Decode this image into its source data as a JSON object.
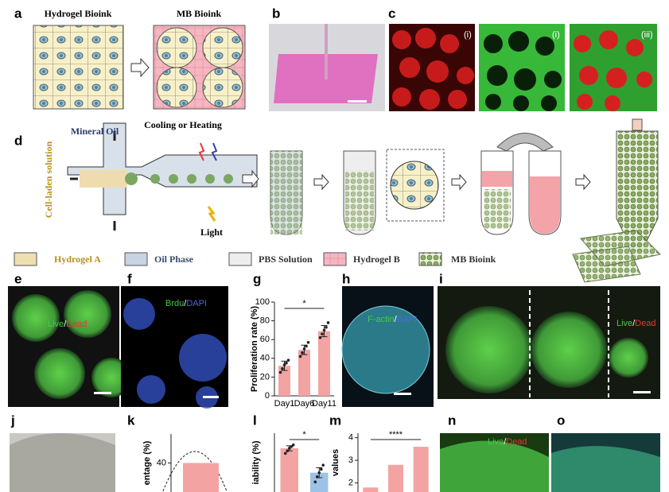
{
  "letters": [
    "a",
    "b",
    "c",
    "d",
    "e",
    "f",
    "g",
    "h",
    "i",
    "j",
    "k",
    "l",
    "m",
    "n",
    "o"
  ],
  "a": {
    "left": "Hydrogel Bioink",
    "right": "MB Bioink"
  },
  "c": {
    "tags": [
      "(i)",
      "(i)",
      "(iii)"
    ]
  },
  "d": {
    "oil": "Mineral Oil",
    "temp": "Cooling or Heating",
    "cells": "Cell-laden solution",
    "light": "Light"
  },
  "legend": [
    "Hydrogel A",
    "Oil Phase",
    "PBS Solution",
    "Hydrogel B",
    "MB Bioink"
  ],
  "e": {
    "live": "Live",
    "slash": "/",
    "dead": "Dead"
  },
  "f": {
    "a": "Brdu",
    "slash": "/",
    "b": "DAPI"
  },
  "h": {
    "a": "F-actin",
    "slash": "/",
    "b": "DAPI"
  },
  "i": {
    "live": "Live",
    "slash": "/",
    "dead": "Dead"
  },
  "n": {
    "live": "Live",
    "slash": "/",
    "dead": "Dead"
  },
  "chart_data": [
    {
      "type": "bar",
      "ylabel": "Proliferation rate (%)",
      "categories": [
        "Day1",
        "Day6",
        "Day11"
      ],
      "values": [
        32,
        49,
        69
      ],
      "errors": [
        5,
        5,
        6
      ],
      "points": [
        [
          25,
          29,
          33,
          35,
          38
        ],
        [
          42,
          46,
          50,
          53,
          57
        ],
        [
          62,
          66,
          70,
          73,
          78
        ]
      ],
      "color": "#f4a3a3",
      "ylim": [
        0,
        100
      ],
      "yticks": [
        0,
        20,
        40,
        60,
        80,
        100
      ],
      "significance": "*"
    },
    {
      "type": "bar",
      "ylabel": "entage (%)",
      "categories": [
        null
      ],
      "values": [
        40
      ],
      "color": "#f4a3a3",
      "ylim": [
        35,
        45
      ],
      "yticks": [
        40
      ]
    },
    {
      "type": "bar",
      "ylabel": "iability (%)",
      "categories": [
        null,
        null
      ],
      "values": [
        92,
        63
      ],
      "errors": [
        3,
        6
      ],
      "points": [
        [
          86,
          89,
          92,
          94,
          96
        ],
        [
          52,
          58,
          63,
          67,
          72
        ]
      ],
      "colors": [
        "#f4a3a3",
        "#9cc3e6"
      ],
      "ylim": [
        40,
        110
      ],
      "yticks": [],
      "significance": "*"
    },
    {
      "type": "bar",
      "ylabel": "values",
      "categories": [
        null,
        null,
        null
      ],
      "values": [
        1.8,
        2.8,
        3.6
      ],
      "color": "#f4a3a3",
      "ylim": [
        1.6,
        4.2
      ],
      "yticks": [
        2,
        3,
        4
      ],
      "significance": "****"
    }
  ]
}
